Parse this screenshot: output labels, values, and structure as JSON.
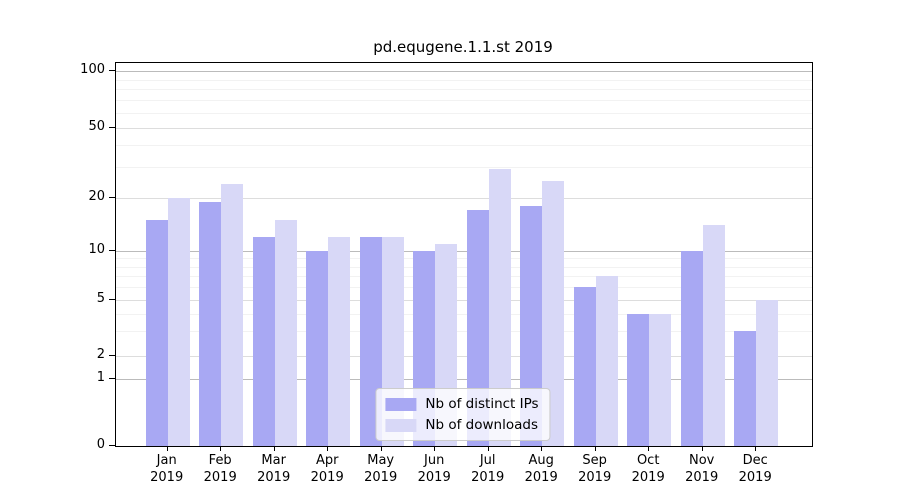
{
  "chart_data": {
    "type": "bar",
    "title": "pd.equgene.1.1.st 2019",
    "categories": [
      "Jan",
      "Feb",
      "Mar",
      "Apr",
      "May",
      "Jun",
      "Jul",
      "Aug",
      "Sep",
      "Oct",
      "Nov",
      "Dec"
    ],
    "x_sublabel": "2019",
    "series": [
      {
        "name": "Nb of distinct IPs",
        "color": "#a8a8f3",
        "values": [
          15,
          19,
          12,
          10,
          12,
          10,
          17,
          18,
          6,
          4,
          10,
          3
        ]
      },
      {
        "name": "Nb of downloads",
        "color": "#d8d8f7",
        "values": [
          20,
          24,
          15,
          12,
          12,
          11,
          29,
          25,
          7,
          4,
          14,
          5
        ]
      }
    ],
    "y_ticks": [
      0,
      1,
      2,
      5,
      10,
      20,
      50,
      100
    ],
    "y_minor_gridlines": [
      3,
      4,
      6,
      7,
      8,
      9,
      30,
      40,
      60,
      70,
      80,
      90
    ],
    "ylim": [
      0,
      100
    ],
    "y_scale": "log-like",
    "grid": true,
    "legend_position": "bottom-center",
    "axis_color": "#000000",
    "gridline_decade_color": "#bbbbbb",
    "gridline_major_color": "#dddddd",
    "gridline_minor_color": "#f2f2f2"
  }
}
